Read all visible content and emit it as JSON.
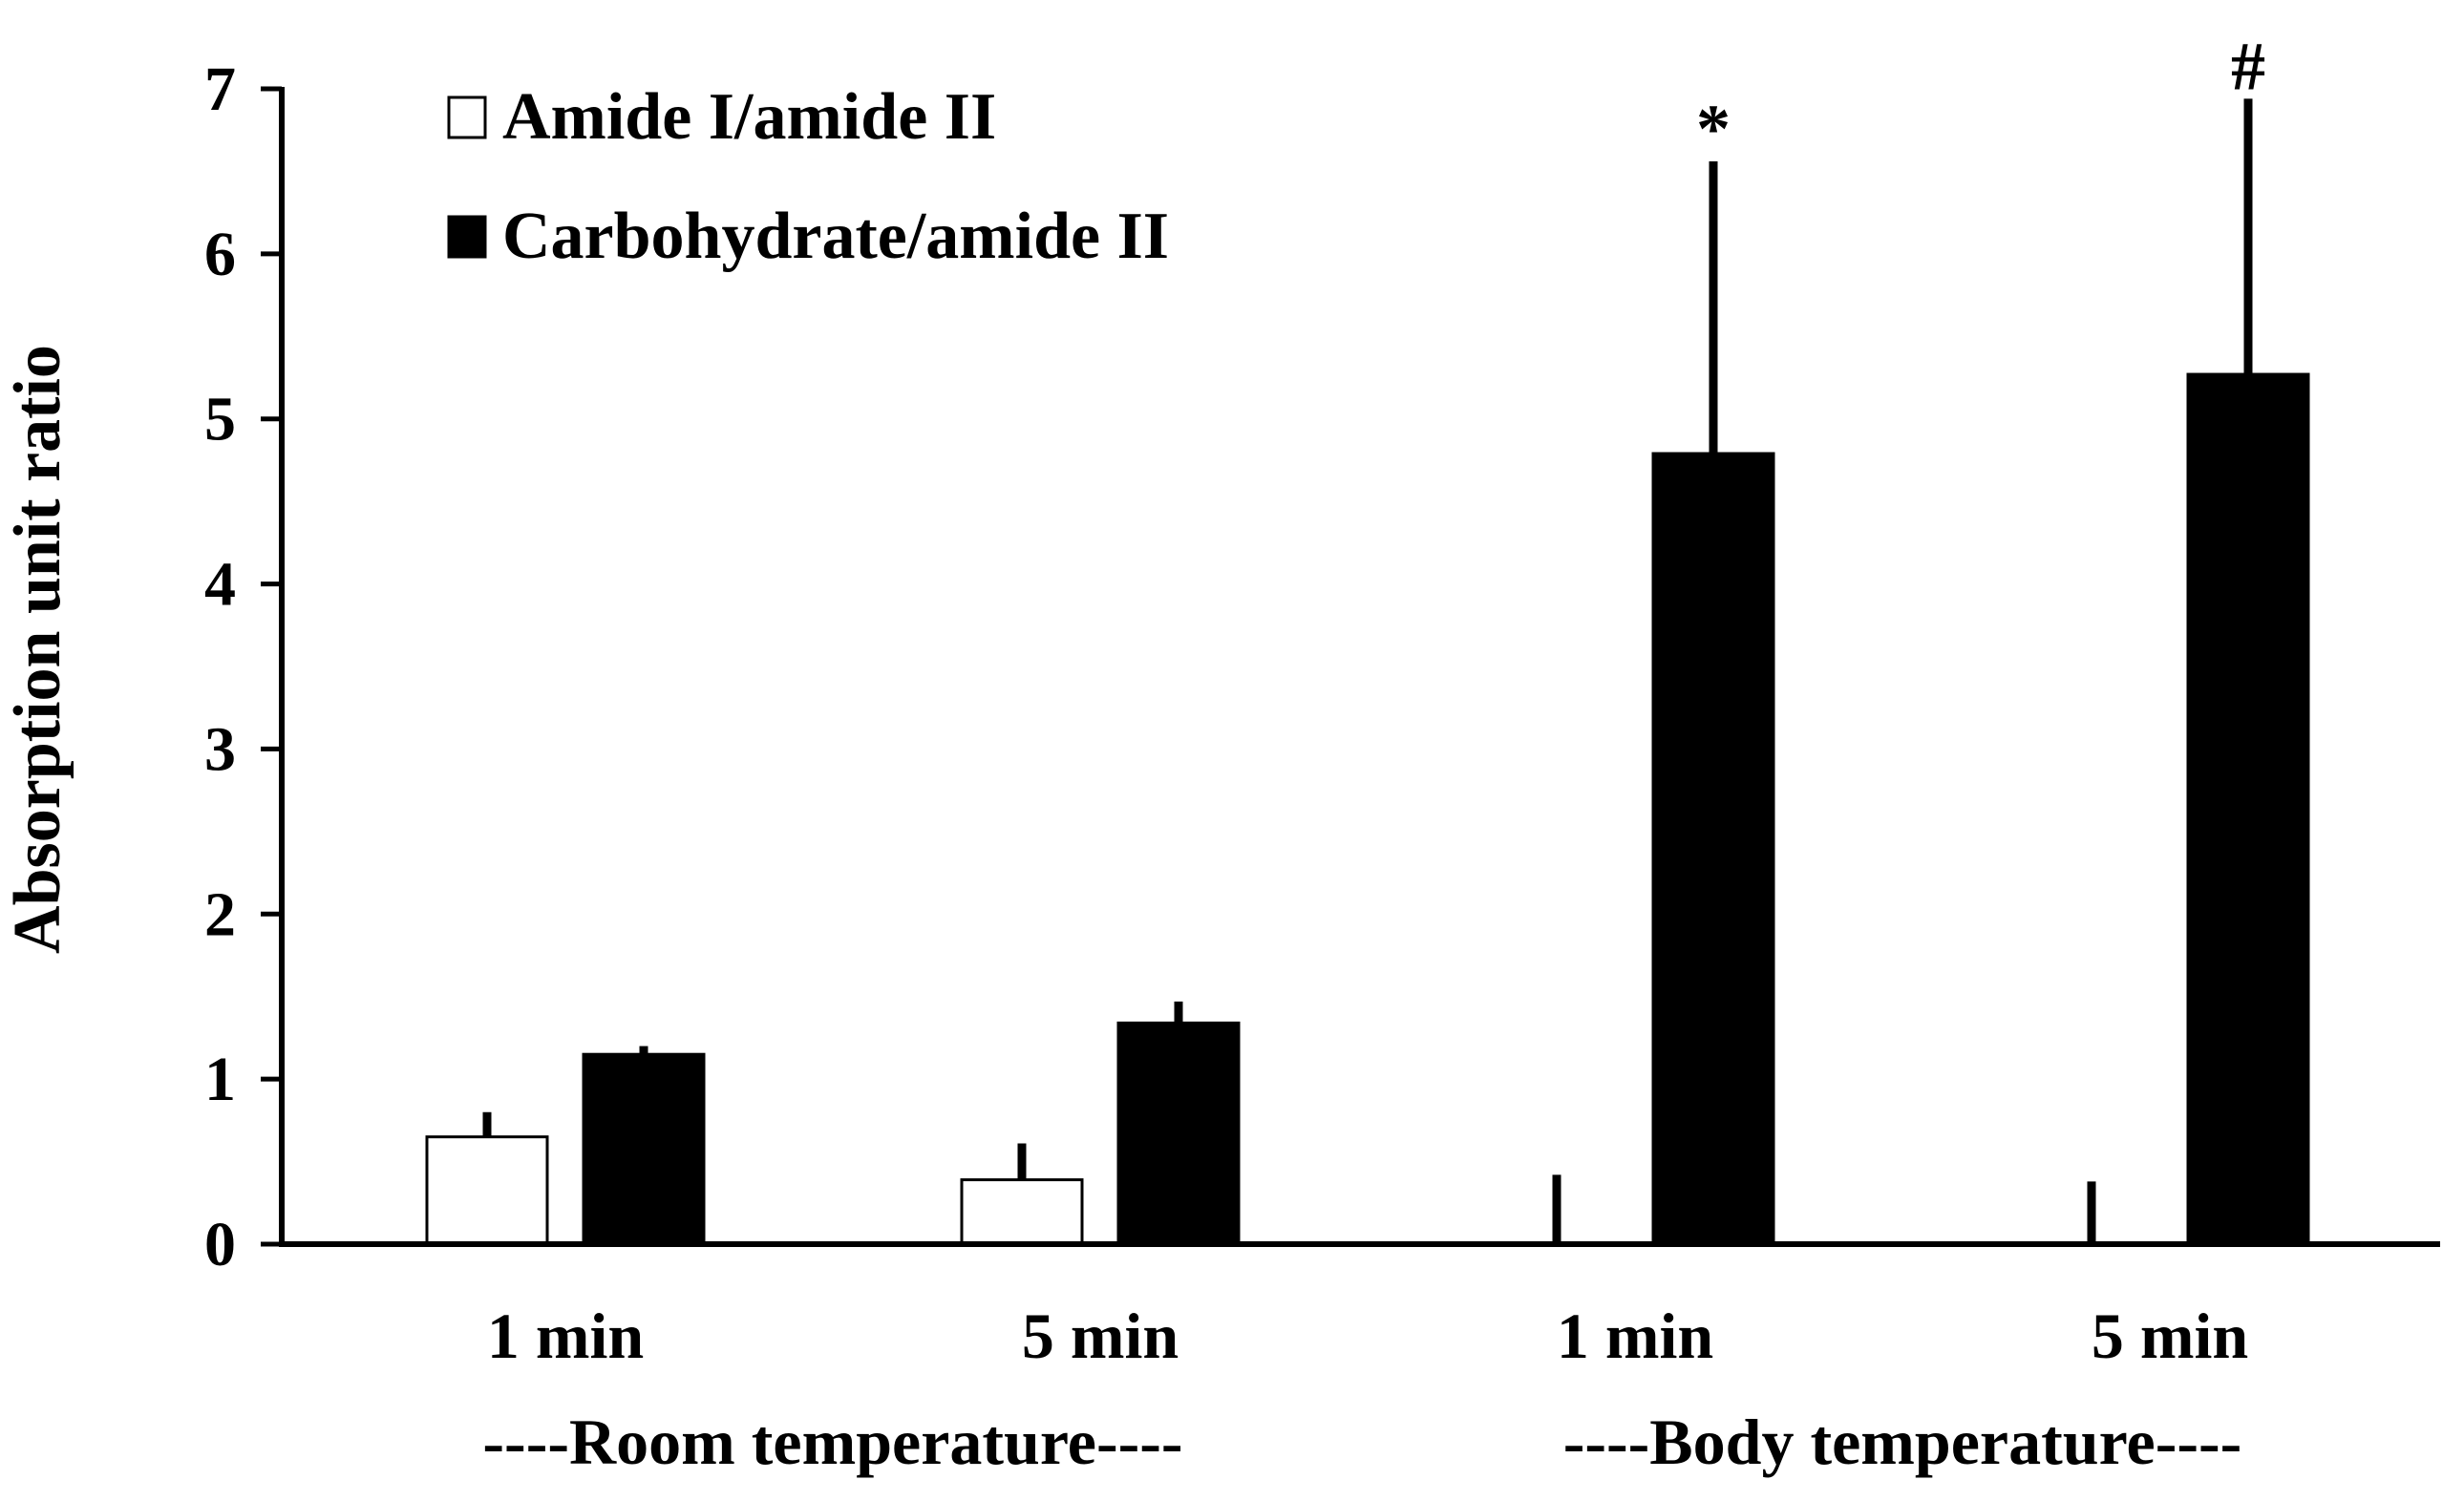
{
  "chart_data": {
    "type": "bar",
    "title": "",
    "ylabel": "Absorption unit ratio",
    "xlabel": "",
    "ylim": [
      0,
      7
    ],
    "yticks": [
      0,
      1,
      2,
      3,
      4,
      5,
      6,
      7
    ],
    "ytick_labels": [
      "0",
      "1",
      "2",
      "3",
      "4",
      "5",
      "6",
      "7"
    ],
    "grid": false,
    "legend_position": "top-left",
    "categories": [
      "1 min",
      "5 min",
      "1 min",
      "5 min"
    ],
    "groups": [
      {
        "label": "----Room temperature----",
        "categories": [
          0,
          1
        ]
      },
      {
        "label": "----Body temperature----",
        "categories": [
          2,
          3
        ]
      }
    ],
    "series": [
      {
        "name": "Amide I/amide II",
        "fill": "#ffffff",
        "edge": "#000000",
        "values": [
          0.65,
          0.39,
          0.0,
          0.0
        ],
        "errors": [
          0.15,
          0.22,
          0.42,
          0.38
        ]
      },
      {
        "name": "Carbohydrate/amide II",
        "fill": "#000000",
        "edge": "#000000",
        "values": [
          1.15,
          1.34,
          4.79,
          5.27
        ],
        "errors": [
          0.05,
          0.13,
          1.77,
          1.67
        ]
      }
    ],
    "annotations": [
      {
        "text": "*",
        "category": 2,
        "series": 1
      },
      {
        "text": "#",
        "category": 3,
        "series": 1
      }
    ]
  }
}
